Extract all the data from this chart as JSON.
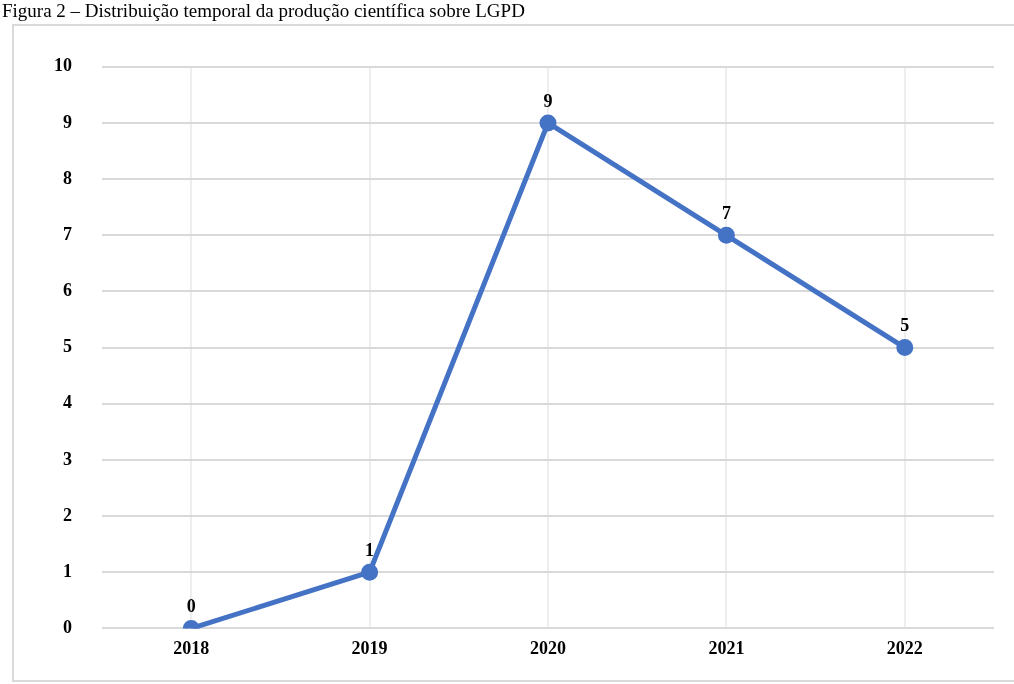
{
  "chart_data": {
    "type": "line",
    "title": "Figura 2 – Distribuição temporal da produção científica sobre LGPD",
    "categories": [
      "2018",
      "2019",
      "2020",
      "2021",
      "2022"
    ],
    "series": [
      {
        "color": "#4472c4",
        "values": [
          0,
          1,
          9,
          7,
          5
        ]
      }
    ],
    "ylim": [
      0,
      10
    ],
    "yticks": [
      0,
      1,
      2,
      3,
      4,
      5,
      6,
      7,
      8,
      9,
      10
    ],
    "grid": true,
    "marker": "circle",
    "line_style": "solid",
    "data_labels": true
  }
}
